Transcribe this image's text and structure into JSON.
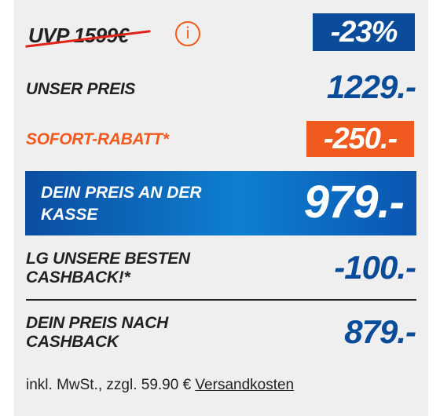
{
  "uvp": {
    "label": "UVP 1599€"
  },
  "discount_badge": "-23%",
  "unser_preis": {
    "label": "UNSER PREIS",
    "value": "1229.-"
  },
  "sofort_rabatt": {
    "label": "SOFORT-RABATT*",
    "value": "-250.-"
  },
  "dein_preis_kasse": {
    "label": "DEIN PREIS AN DER KASSE",
    "value": "979.-"
  },
  "cashback": {
    "label": "LG UNSERE BESTEN CASHBACK!*",
    "value": "-100.-"
  },
  "preis_nach_cashback": {
    "label": "DEIN PREIS NACH CASHBACK",
    "value": "879.-"
  },
  "footer": {
    "text": "inkl. MwSt., zzgl. 59.90 € ",
    "link": "Versandkosten"
  },
  "icons": {
    "info": "info-icon"
  },
  "colors": {
    "brand_blue": "#0a4c9a",
    "accent_orange": "#f05a1e",
    "strike_red": "#e2231a"
  }
}
